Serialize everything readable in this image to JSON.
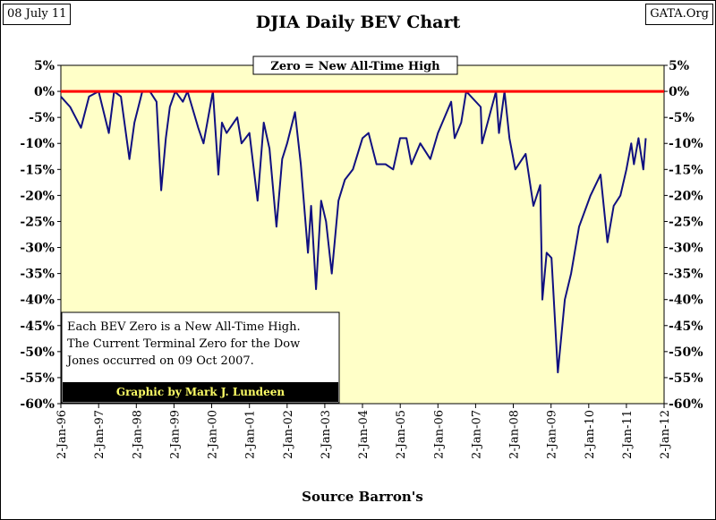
{
  "header": {
    "date": "08 July 11",
    "source_tag": "GATA.Org"
  },
  "colors": {
    "plot_background": "#ffffc8",
    "series_line": "#101080",
    "zero_line": "#ff0000",
    "annotation_footer_bg": "#000000",
    "annotation_footer_text": "#ffff66"
  },
  "chart_data": {
    "type": "line",
    "title": "DJIA Daily BEV Chart",
    "xlabel": "Source Barron's",
    "ylabel": "",
    "ylim": [
      -60,
      5
    ],
    "xlim": [
      "1996-01-02",
      "2012-01-02"
    ],
    "y_ticks": [
      5,
      0,
      -5,
      -10,
      -15,
      -20,
      -25,
      -30,
      -35,
      -40,
      -45,
      -50,
      -55,
      -60
    ],
    "y_tick_labels": [
      "5%",
      "0%",
      "-5%",
      "-10%",
      "-15%",
      "-20%",
      "-25%",
      "-30%",
      "-35%",
      "-40%",
      "-45%",
      "-50%",
      "-55%",
      "-60%"
    ],
    "x_ticks": [
      "1996-01-02",
      "1997-01-02",
      "1998-01-02",
      "1999-01-02",
      "2000-01-02",
      "2001-01-02",
      "2002-01-02",
      "2003-01-02",
      "2004-01-02",
      "2005-01-02",
      "2006-01-02",
      "2007-01-02",
      "2008-01-02",
      "2009-01-02",
      "2010-01-02",
      "2011-01-02",
      "2012-01-02"
    ],
    "x_tick_labels": [
      "2-Jan-96",
      "2-Jan-97",
      "2-Jan-98",
      "2-Jan-99",
      "2-Jan-00",
      "2-Jan-01",
      "2-Jan-02",
      "2-Jan-03",
      "2-Jan-04",
      "2-Jan-05",
      "2-Jan-06",
      "2-Jan-07",
      "2-Jan-08",
      "2-Jan-09",
      "2-Jan-10",
      "2-Jan-11",
      "2-Jan-12"
    ],
    "grid": false,
    "reference_line": {
      "y": 0,
      "label": "Zero = New All-Time High"
    },
    "annotation": {
      "lines": [
        "Each BEV Zero is a New All-Time High.",
        "The Current Terminal Zero for the Dow",
        "Jones occurred on 09 Oct 2007."
      ],
      "footer": "Graphic by Mark J. Lundeen"
    },
    "series": [
      {
        "x": [
          "1996-01-02",
          "1996-04-01",
          "1996-07-15",
          "1996-10-01",
          "1997-01-02",
          "1997-04-11",
          "1997-06-01",
          "1997-08-06",
          "1997-10-27",
          "1997-12-15",
          "1998-03-01",
          "1998-05-13",
          "1998-07-17",
          "1998-08-31",
          "1998-10-15",
          "1998-11-23",
          "1999-01-15",
          "1999-03-29",
          "1999-05-13",
          "1999-08-25",
          "1999-10-15",
          "2000-01-14",
          "2000-03-07",
          "2000-04-11",
          "2000-05-26",
          "2000-09-06",
          "2000-10-18",
          "2001-01-02",
          "2001-03-22",
          "2001-05-21",
          "2001-07-15",
          "2001-09-21",
          "2001-11-15",
          "2002-01-02",
          "2002-03-19",
          "2002-05-15",
          "2002-07-23",
          "2002-08-22",
          "2002-10-09",
          "2002-11-27",
          "2003-01-14",
          "2003-03-11",
          "2003-05-15",
          "2003-07-15",
          "2003-10-01",
          "2004-01-02",
          "2004-03-01",
          "2004-05-17",
          "2004-08-13",
          "2004-10-25",
          "2004-12-31",
          "2005-03-04",
          "2005-04-20",
          "2005-07-15",
          "2005-10-20",
          "2006-01-02",
          "2006-05-10",
          "2006-06-13",
          "2006-08-15",
          "2006-10-03",
          "2007-02-20",
          "2007-03-05",
          "2007-07-19",
          "2007-08-16",
          "2007-10-09",
          "2007-11-26",
          "2008-01-22",
          "2008-05-01",
          "2008-07-15",
          "2008-09-19",
          "2008-10-10",
          "2008-11-20",
          "2009-01-06",
          "2009-03-09",
          "2009-05-15",
          "2009-07-15",
          "2009-09-30",
          "2010-01-19",
          "2010-04-26",
          "2010-07-02",
          "2010-09-01",
          "2010-11-05",
          "2011-01-02",
          "2011-02-18",
          "2011-03-16",
          "2011-04-29",
          "2011-06-15",
          "2011-07-08"
        ],
        "y": [
          -1,
          -3,
          -7,
          -1,
          0,
          -8,
          0,
          -1,
          -13,
          -6,
          0,
          0,
          -2,
          -19,
          -9,
          -3,
          0,
          -2,
          0,
          -7,
          -10,
          0,
          -16,
          -6,
          -8,
          -5,
          -10,
          -8,
          -21,
          -6,
          -11,
          -26,
          -13,
          -10,
          -4,
          -14,
          -31,
          -22,
          -38,
          -21,
          -25,
          -35,
          -21,
          -17,
          -15,
          -9,
          -8,
          -14,
          -14,
          -15,
          -9,
          -9,
          -14,
          -10,
          -13,
          -8,
          -2,
          -9,
          -6,
          0,
          -3,
          -10,
          0,
          -8,
          0,
          -9,
          -15,
          -12,
          -22,
          -18,
          -40,
          -31,
          -32,
          -54,
          -40,
          -35,
          -26,
          -20,
          -16,
          -29,
          -22,
          -20,
          -15,
          -10,
          -14,
          -9,
          -15,
          -9
        ]
      }
    ]
  }
}
